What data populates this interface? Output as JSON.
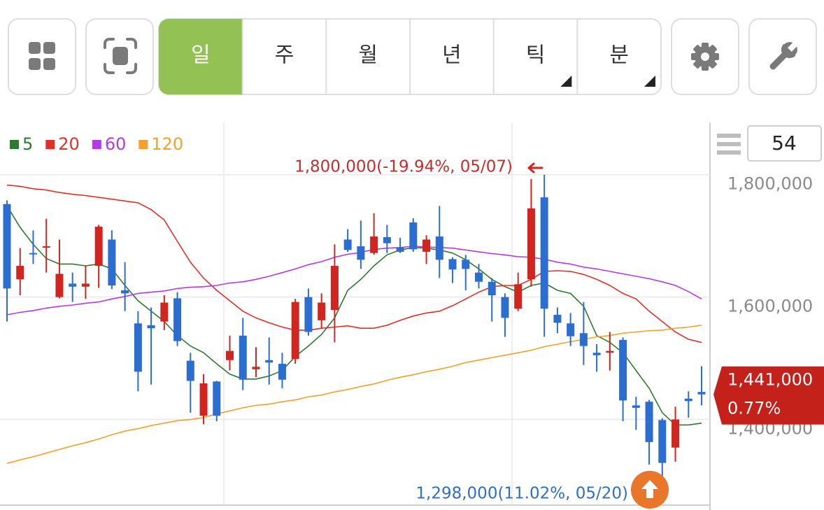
{
  "toolbar": {
    "periods": [
      {
        "label": "일",
        "active": true,
        "has_menu": false
      },
      {
        "label": "주",
        "active": false,
        "has_menu": false
      },
      {
        "label": "월",
        "active": false,
        "has_menu": false
      },
      {
        "label": "년",
        "active": false,
        "has_menu": false
      },
      {
        "label": "틱",
        "active": false,
        "has_menu": true
      },
      {
        "label": "분",
        "active": false,
        "has_menu": true
      }
    ]
  },
  "count_box": "54",
  "price_tag": {
    "price": "1,441,000",
    "change": "0.77%"
  },
  "chart_data": {
    "type": "candlestick",
    "up_color": "#d0261f",
    "down_color": "#2c6dd0",
    "ylim": [
      1260000,
      1882000
    ],
    "yticks": [
      {
        "value": 1400000,
        "label": "1,400,000"
      },
      {
        "value": 1600000,
        "label": "1,600,000"
      },
      {
        "value": 1800000,
        "label": "1,800,000"
      }
    ],
    "grid": true,
    "high_annotation": "1,800,000(-19.94%, 05/07)",
    "low_annotation": "1,298,000(11.02%, 05/20)",
    "open": [
      1752000,
      1629000,
      1672000,
      1681000,
      1600000,
      1622000,
      1617000,
      1651000,
      1694000,
      1611000,
      1557000,
      1554000,
      1560000,
      1598000,
      1496000,
      1406000,
      1462000,
      1497000,
      1537000,
      1482000,
      1497000,
      1491000,
      1499000,
      1600000,
      1562000,
      1579000,
      1694000,
      1683000,
      1672000,
      1698000,
      1681000,
      1722000,
      1674000,
      1699000,
      1662000,
      1661000,
      1640000,
      1625000,
      1600000,
      1581000,
      1629000,
      1763000,
      1571000,
      1557000,
      1541000,
      1509000,
      1509000,
      1530000,
      1423000,
      1429000,
      1399000,
      1354000,
      1434000,
      1445000
    ],
    "high": [
      1758000,
      1680000,
      1709000,
      1728000,
      1694000,
      1640000,
      1651000,
      1718000,
      1709000,
      1657000,
      1577000,
      1583000,
      1603000,
      1608000,
      1509000,
      1474000,
      1463000,
      1537000,
      1566000,
      1518000,
      1534000,
      1509000,
      1597000,
      1614000,
      1606000,
      1686000,
      1711000,
      1725000,
      1737000,
      1718000,
      1697000,
      1729000,
      1701000,
      1749000,
      1665000,
      1669000,
      1654000,
      1631000,
      1606000,
      1640000,
      1793000,
      1800000,
      1583000,
      1574000,
      1592000,
      1523000,
      1543000,
      1534000,
      1437000,
      1432000,
      1402000,
      1421000,
      1446000,
      1487000
    ],
    "low": [
      1560000,
      1603000,
      1654000,
      1640000,
      1598000,
      1592000,
      1597000,
      1615000,
      1613000,
      1577000,
      1446000,
      1457000,
      1546000,
      1520000,
      1411000,
      1392000,
      1397000,
      1480000,
      1448000,
      1469000,
      1457000,
      1451000,
      1491000,
      1537000,
      1549000,
      1526000,
      1674000,
      1646000,
      1669000,
      1672000,
      1672000,
      1674000,
      1654000,
      1631000,
      1623000,
      1611000,
      1614000,
      1560000,
      1535000,
      1577000,
      1617000,
      1535000,
      1541000,
      1520000,
      1489000,
      1478000,
      1480000,
      1397000,
      1383000,
      1326000,
      1298000,
      1331000,
      1403000,
      1423000
    ],
    "close": [
      1614000,
      1651000,
      1670000,
      1683000,
      1638000,
      1617000,
      1622000,
      1715000,
      1619000,
      1606000,
      1478000,
      1549000,
      1591000,
      1528000,
      1463000,
      1459000,
      1406000,
      1512000,
      1465000,
      1486000,
      1493000,
      1465000,
      1592000,
      1543000,
      1591000,
      1651000,
      1677000,
      1661000,
      1699000,
      1688000,
      1674000,
      1678000,
      1694000,
      1661000,
      1645000,
      1646000,
      1625000,
      1603000,
      1566000,
      1621000,
      1745000,
      1581000,
      1558000,
      1536000,
      1520000,
      1505000,
      1512000,
      1431000,
      1419000,
      1363000,
      1329000,
      1400000,
      1430000,
      1441000
    ],
    "series": [
      {
        "name": "5",
        "color": "#2e7a2e",
        "values": [
          1749000,
          1714000,
          1686000,
          1663000,
          1654000,
          1654000,
          1651000,
          1654000,
          1646000,
          1619000,
          1594000,
          1577000,
          1560000,
          1537000,
          1520000,
          1509000,
          1491000,
          1474000,
          1466000,
          1466000,
          1471000,
          1480000,
          1503000,
          1520000,
          1539000,
          1566000,
          1611000,
          1629000,
          1651000,
          1669000,
          1677000,
          1681000,
          1680000,
          1677000,
          1672000,
          1661000,
          1646000,
          1629000,
          1617000,
          1608000,
          1619000,
          1623000,
          1611000,
          1606000,
          1585000,
          1537000,
          1526000,
          1509000,
          1480000,
          1451000,
          1411000,
          1391000,
          1391000,
          1394000
        ]
      },
      {
        "name": "20",
        "color": "#e0302a",
        "values": [
          1783000,
          1781000,
          1777000,
          1775000,
          1771000,
          1768000,
          1766000,
          1763000,
          1760000,
          1757000,
          1754000,
          1743000,
          1726000,
          1691000,
          1657000,
          1631000,
          1611000,
          1594000,
          1577000,
          1566000,
          1558000,
          1551000,
          1546000,
          1546000,
          1549000,
          1551000,
          1553000,
          1549000,
          1549000,
          1554000,
          1562000,
          1569000,
          1574000,
          1577000,
          1586000,
          1597000,
          1608000,
          1617000,
          1619000,
          1619000,
          1629000,
          1642000,
          1643000,
          1642000,
          1637000,
          1629000,
          1619000,
          1606000,
          1597000,
          1577000,
          1560000,
          1543000,
          1531000,
          1526000
        ]
      },
      {
        "name": "60",
        "color": "#b23be6",
        "values": [
          1571000,
          1575000,
          1578000,
          1582000,
          1585000,
          1587000,
          1590000,
          1592000,
          1597000,
          1601000,
          1606000,
          1608000,
          1610000,
          1614000,
          1616000,
          1617000,
          1619000,
          1623000,
          1625000,
          1629000,
          1634000,
          1640000,
          1646000,
          1653000,
          1658000,
          1665000,
          1670000,
          1673000,
          1678000,
          1680000,
          1681000,
          1683000,
          1682000,
          1681000,
          1680000,
          1677000,
          1674000,
          1671000,
          1669000,
          1666000,
          1665000,
          1662000,
          1657000,
          1654000,
          1649000,
          1646000,
          1642000,
          1638000,
          1634000,
          1630000,
          1625000,
          1619000,
          1609000,
          1597000
        ]
      },
      {
        "name": "120",
        "color": "#f0a22e",
        "values": [
          1328000,
          1334000,
          1339000,
          1345000,
          1351000,
          1357000,
          1362000,
          1368000,
          1375000,
          1381000,
          1385000,
          1390000,
          1394000,
          1398000,
          1400000,
          1403000,
          1409000,
          1414000,
          1419000,
          1423000,
          1425000,
          1429000,
          1432000,
          1437000,
          1440000,
          1445000,
          1449000,
          1454000,
          1458000,
          1464000,
          1469000,
          1473000,
          1478000,
          1482000,
          1487000,
          1493000,
          1497000,
          1501000,
          1505000,
          1509000,
          1513000,
          1519000,
          1523000,
          1527000,
          1531000,
          1535000,
          1537000,
          1541000,
          1543000,
          1545000,
          1546000,
          1549000,
          1551000,
          1554000
        ]
      }
    ]
  }
}
